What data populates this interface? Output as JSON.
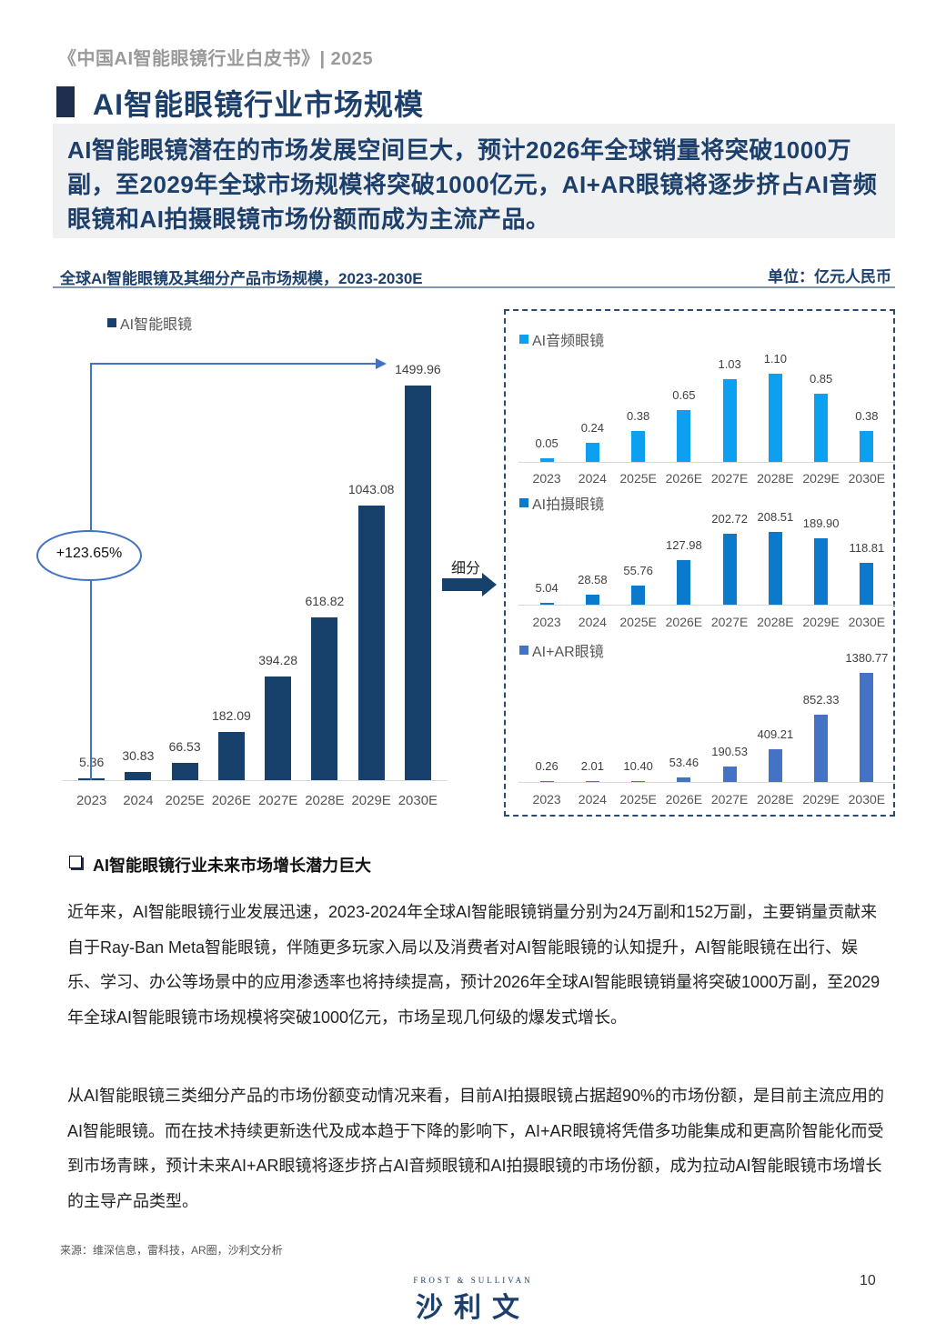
{
  "header": {
    "doc_title": "《中国AI智能眼镜行业白皮书》| 2025"
  },
  "page": {
    "title": "AI智能眼镜行业市场规模",
    "summary": "AI智能眼镜潜在的市场发展空间巨大，预计2026年全球销量将突破1000万副，至2029年全球市场规模将突破1000亿元，AI+AR眼镜将逐步挤占AI音频眼镜和AI拍摄眼镜市场份额而成为主流产品。"
  },
  "chart_header": {
    "title": "全球AI智能眼镜及其细分产品市场规模，2023-2030E",
    "unit": "单位：亿元人民币"
  },
  "annotation": {
    "cagr": "+123.65%",
    "split_label": "细分"
  },
  "chart_data": [
    {
      "type": "bar",
      "title": "AI智能眼镜",
      "legend": [
        "AI智能眼镜"
      ],
      "color": "#17406a",
      "categories": [
        "2023",
        "2024",
        "2025E",
        "2026E",
        "2027E",
        "2028E",
        "2029E",
        "2030E"
      ],
      "values": [
        5.36,
        30.83,
        66.53,
        182.09,
        394.28,
        618.82,
        1043.08,
        1499.96
      ],
      "labels": [
        "5.36",
        "30.83",
        "66.53",
        "182.09",
        "394.28",
        "618.82",
        "1043.08",
        "1499.96"
      ],
      "annotation": "+123.65%",
      "grid": false
    },
    {
      "type": "bar",
      "title": "AI音频眼镜",
      "legend": [
        "AI音频眼镜"
      ],
      "color": "#0ea0f0",
      "categories": [
        "2023",
        "2024",
        "2025E",
        "2026E",
        "2027E",
        "2028E",
        "2029E",
        "2030E"
      ],
      "values": [
        0.05,
        0.24,
        0.38,
        0.65,
        1.03,
        1.1,
        0.85,
        0.38
      ],
      "labels": [
        "0.05",
        "0.24",
        "0.38",
        "0.65",
        "1.03",
        "1.10",
        "0.85",
        "0.38"
      ],
      "grid": false
    },
    {
      "type": "bar",
      "title": "AI拍摄眼镜",
      "legend": [
        "AI拍摄眼镜"
      ],
      "color": "#0b79cc",
      "categories": [
        "2023",
        "2024",
        "2025E",
        "2026E",
        "2027E",
        "2028E",
        "2029E",
        "2030E"
      ],
      "values": [
        5.04,
        28.58,
        55.76,
        127.98,
        202.72,
        208.51,
        189.9,
        118.81
      ],
      "labels": [
        "5.04",
        "28.58",
        "55.76",
        "127.98",
        "202.72",
        "208.51",
        "189.90",
        "118.81"
      ],
      "grid": false
    },
    {
      "type": "bar",
      "title": "AI+AR眼镜",
      "legend": [
        "AI+AR眼镜"
      ],
      "color": "#4472c4",
      "categories": [
        "2023",
        "2024",
        "2025E",
        "2026E",
        "2027E",
        "2028E",
        "2029E",
        "2030E"
      ],
      "values": [
        0.26,
        2.01,
        10.4,
        53.46,
        190.53,
        409.21,
        852.33,
        1380.77
      ],
      "labels": [
        "0.26",
        "2.01",
        "10.40",
        "53.46",
        "190.53",
        "409.21",
        "852.33",
        "1380.77"
      ],
      "grid": false
    }
  ],
  "section": {
    "heading": "AI智能眼镜行业未来市场增长潜力巨大",
    "paragraphs": [
      "近年来，AI智能眼镜行业发展迅速，2023-2024年全球AI智能眼镜销量分别为24万副和152万副，主要销量贡献来自于Ray-Ban Meta智能眼镜，伴随更多玩家入局以及消费者对AI智能眼镜的认知提升，AI智能眼镜在出行、娱乐、学习、办公等场景中的应用渗透率也将持续提高，预计2026年全球AI智能眼镜销量将突破1000万副，至2029年全球AI智能眼镜市场规模将突破1000亿元，市场呈现几何级的爆发式增长。",
      "从AI智能眼镜三类细分产品的市场份额变动情况来看，目前AI拍摄眼镜占据超90%的市场份额，是目前主流应用的AI智能眼镜。而在技术持续更新迭代及成本趋于下降的影响下，AI+AR眼镜将凭借多功能集成和更高阶智能化而受到市场青睐，预计未来AI+AR眼镜将逐步挤占AI音频眼镜和AI拍摄眼镜的市场份额，成为拉动AI智能眼镜市场增长的主导产品类型。"
    ]
  },
  "footer": {
    "source": "来源：维深信息，雷科技，AR圈，沙利文分析",
    "brand_en": "FROST & SULLIVAN",
    "brand_cn": "沙利文",
    "page_number": "10"
  }
}
